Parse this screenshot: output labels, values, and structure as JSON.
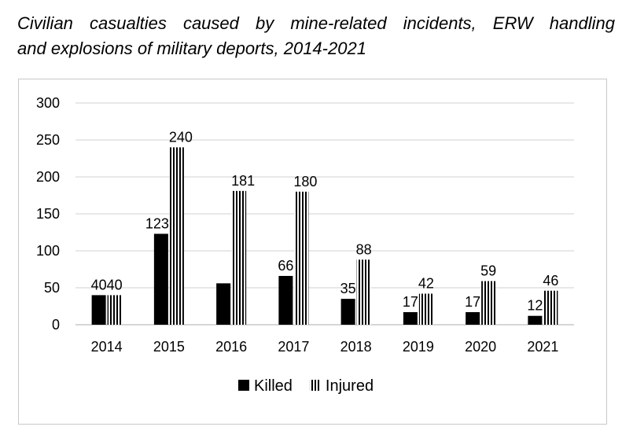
{
  "title_line1": "Civilian casualties caused by mine-related incidents, ERW handling",
  "title_line2": "and explosions of military deports, 2014-2021",
  "chart_data": {
    "type": "bar",
    "title": "Civilian casualties caused by mine-related incidents, ERW handling and explosions of military deports, 2014-2021",
    "categories": [
      "2014",
      "2015",
      "2016",
      "2017",
      "2018",
      "2019",
      "2020",
      "2021"
    ],
    "series": [
      {
        "name": "Killed",
        "values": [
          40,
          123,
          56,
          66,
          35,
          17,
          17,
          12
        ],
        "labels": [
          "40",
          "123",
          "",
          "66",
          "35",
          "17",
          "17",
          "12"
        ],
        "pattern": "solid",
        "color": "#000000"
      },
      {
        "name": "Injured",
        "values": [
          40,
          240,
          181,
          180,
          88,
          42,
          59,
          46
        ],
        "labels": [
          "40",
          "240",
          "181",
          "180",
          "88",
          "42",
          "59",
          "46"
        ],
        "pattern": "vertical-stripes",
        "color": "#000000"
      }
    ],
    "yticks": [
      "0",
      "50",
      "100",
      "150",
      "200",
      "250",
      "300"
    ],
    "ylim": [
      0,
      300
    ],
    "grid": true,
    "legend": "bottom"
  }
}
